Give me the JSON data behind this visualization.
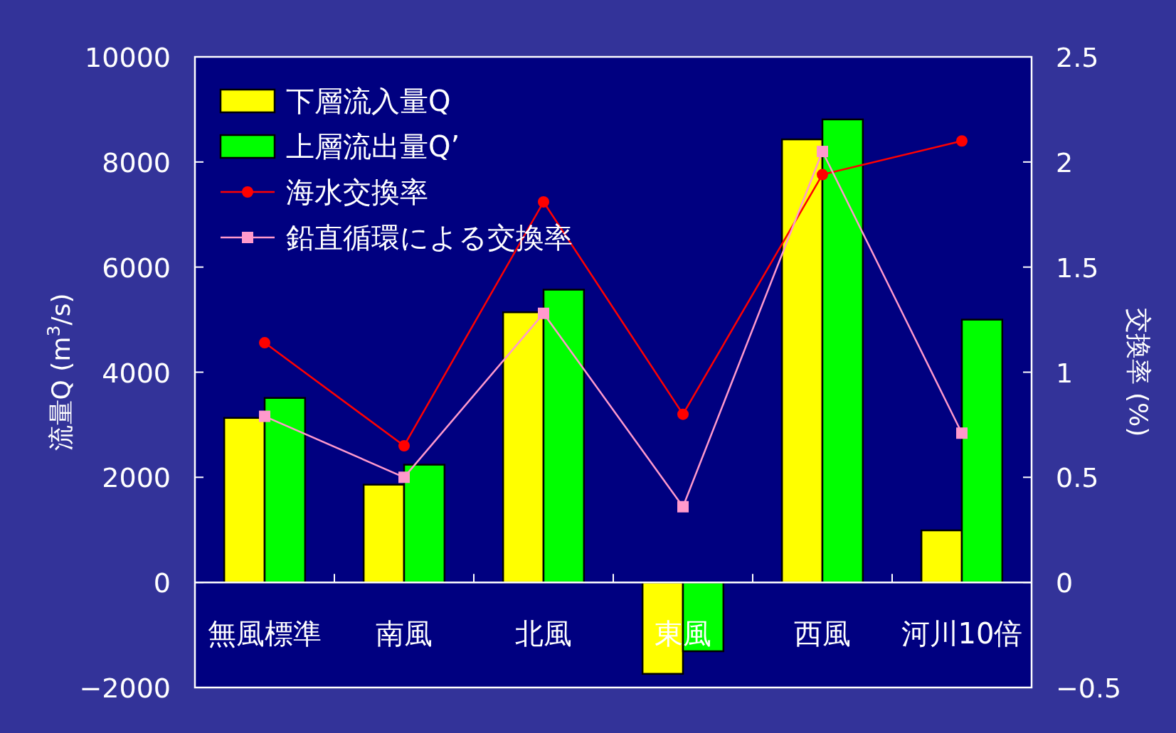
{
  "chart_data": {
    "type": "bar",
    "categories": [
      "無風標準",
      "南風",
      "北風",
      "東風",
      "西風",
      "河川10倍"
    ],
    "series": [
      {
        "name": "下層流入量Q",
        "color": "#ffff00",
        "values": [
          3130,
          1860,
          5140,
          -1740,
          8430,
          990
        ]
      },
      {
        "name": "上層流出量Q’",
        "color": "#00ff00",
        "values": [
          3510,
          2240,
          5570,
          -1310,
          8810,
          5000
        ]
      },
      {
        "name": "海水交換率",
        "type": "line",
        "axis": "y2",
        "color": "#ff0000",
        "marker": "circle",
        "values": [
          1.14,
          0.65,
          1.81,
          0.8,
          1.94,
          2.1
        ]
      },
      {
        "name": "鉛直循環による交換率",
        "type": "line",
        "axis": "y2",
        "color": "#ff99cc",
        "marker": "square",
        "values": [
          0.79,
          0.5,
          1.28,
          0.36,
          2.05,
          0.71
        ]
      }
    ],
    "ylabel": "流量Q (m$^{3}$/s)",
    "y2label": "交換率 (%)",
    "ylim": [
      -2000,
      10000
    ],
    "yticks": [
      -2000,
      0,
      2000,
      4000,
      6000,
      8000,
      10000
    ],
    "y2lim": [
      -0.5,
      2.5
    ],
    "y2ticks": [
      -0.5,
      0,
      0.5,
      1,
      1.5,
      2,
      2.5
    ],
    "legend": "top left",
    "grid": false
  }
}
